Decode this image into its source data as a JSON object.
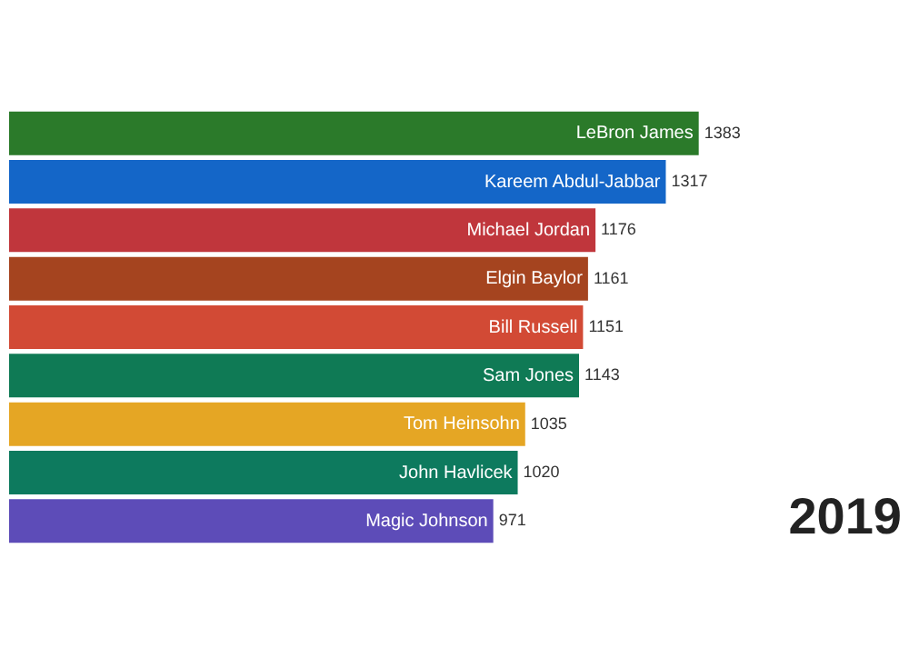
{
  "chart_data": {
    "type": "bar",
    "orientation": "horizontal",
    "categories": [
      "LeBron James",
      "Kareem Abdul-Jabbar",
      "Michael Jordan",
      "Elgin Baylor",
      "Bill Russell",
      "Sam Jones",
      "Tom Heinsohn",
      "John Havlicek",
      "Magic Johnson"
    ],
    "values": [
      1383,
      1317,
      1176,
      1161,
      1151,
      1143,
      1035,
      1020,
      971
    ],
    "colors": [
      "#2b7a2a",
      "#1466c8",
      "#c0363c",
      "#a5441f",
      "#d24a35",
      "#0f7a55",
      "#e5a624",
      "#0d7a5e",
      "#5d4cb8"
    ],
    "data_labels": true,
    "tick_labels": false,
    "annotations": [
      "2019"
    ]
  }
}
